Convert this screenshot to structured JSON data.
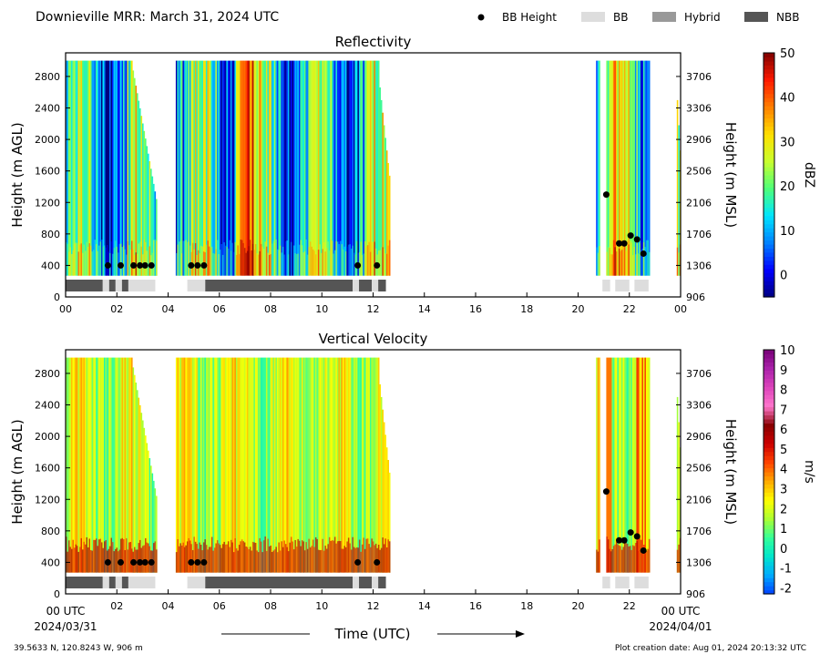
{
  "header": {
    "title": "Downieville MRR:  March 31, 2024 UTC",
    "legend": [
      {
        "label": "BB Height",
        "kind": "dot",
        "color": "#000000"
      },
      {
        "label": "BB",
        "kind": "rect",
        "color": "#dddddd"
      },
      {
        "label": "Hybrid",
        "kind": "rect",
        "color": "#999999"
      },
      {
        "label": "NBB",
        "kind": "rect",
        "color": "#555555"
      }
    ]
  },
  "footer": {
    "location": "39.5633 N, 120.8243 W, 906 m",
    "creation": "Plot creation date: Aug 01, 2024 20:13:32 UTC",
    "xlabel": "Time (UTC)",
    "start_tick": "00 UTC",
    "start_date": "2024/03/31",
    "end_tick": "00 UTC",
    "end_date": "2024/04/01"
  },
  "chart_data": [
    {
      "type": "heatmap",
      "title": "Reflectivity",
      "ylabel": "Height (m AGL)",
      "y2label": "Height (m MSL)",
      "x_ticks": [
        "00",
        "02",
        "04",
        "06",
        "08",
        "10",
        "12",
        "14",
        "16",
        "18",
        "20",
        "22",
        "00"
      ],
      "xlim": [
        0,
        24
      ],
      "ylim": [
        0,
        3100
      ],
      "y_ticks": [
        0,
        400,
        800,
        1200,
        1600,
        2000,
        2400,
        2800
      ],
      "y2_ticks": [
        "906",
        "1306",
        "1706",
        "2106",
        "2506",
        "2906",
        "3306",
        "3706"
      ],
      "colorbar": {
        "label": "dBZ",
        "min": -5,
        "max": 50,
        "ticks": [
          0,
          10,
          20,
          30,
          40,
          50
        ],
        "colors": [
          "#00007f",
          "#0000ff",
          "#0080ff",
          "#00e5ff",
          "#4dff7a",
          "#c8ff2e",
          "#ffe000",
          "#ff8000",
          "#ff1a00",
          "#7f0000"
        ]
      },
      "precip_periods": [
        [
          0.0,
          3.55
        ],
        [
          4.3,
          12.65
        ],
        [
          20.7,
          20.85
        ],
        [
          21.1,
          22.8
        ],
        [
          23.85,
          24.0
        ]
      ],
      "bb_heights": [
        {
          "t": 1.65,
          "h": 400
        },
        {
          "t": 2.15,
          "h": 400
        },
        {
          "t": 2.65,
          "h": 400
        },
        {
          "t": 2.9,
          "h": 400
        },
        {
          "t": 3.1,
          "h": 400
        },
        {
          "t": 3.35,
          "h": 400
        },
        {
          "t": 4.9,
          "h": 400
        },
        {
          "t": 5.15,
          "h": 400
        },
        {
          "t": 5.4,
          "h": 400
        },
        {
          "t": 11.4,
          "h": 400
        },
        {
          "t": 12.15,
          "h": 400
        },
        {
          "t": 21.1,
          "h": 1300
        },
        {
          "t": 21.6,
          "h": 680
        },
        {
          "t": 21.8,
          "h": 680
        },
        {
          "t": 22.05,
          "h": 780
        },
        {
          "t": 22.3,
          "h": 730
        },
        {
          "t": 22.55,
          "h": 550
        }
      ],
      "bb_type_bar": [
        {
          "start": 0.0,
          "end": 1.45,
          "type": "NBB"
        },
        {
          "start": 1.45,
          "end": 1.7,
          "type": "BB"
        },
        {
          "start": 1.7,
          "end": 1.95,
          "type": "NBB"
        },
        {
          "start": 1.95,
          "end": 2.2,
          "type": "BB"
        },
        {
          "start": 2.2,
          "end": 2.45,
          "type": "NBB"
        },
        {
          "start": 2.45,
          "end": 3.5,
          "type": "BB"
        },
        {
          "start": 4.75,
          "end": 5.45,
          "type": "BB"
        },
        {
          "start": 5.45,
          "end": 11.2,
          "type": "NBB"
        },
        {
          "start": 11.2,
          "end": 11.45,
          "type": "BB"
        },
        {
          "start": 11.45,
          "end": 11.95,
          "type": "NBB"
        },
        {
          "start": 11.95,
          "end": 12.2,
          "type": "BB"
        },
        {
          "start": 12.2,
          "end": 12.5,
          "type": "NBB"
        },
        {
          "start": 20.95,
          "end": 21.25,
          "type": "BB"
        },
        {
          "start": 21.45,
          "end": 22.0,
          "type": "BB"
        },
        {
          "start": 22.2,
          "end": 22.75,
          "type": "BB"
        }
      ]
    },
    {
      "type": "heatmap",
      "title": "Vertical Velocity",
      "ylabel": "Height (m AGL)",
      "y2label": "Height (m MSL)",
      "x_ticks": [
        "",
        "02",
        "04",
        "06",
        "08",
        "10",
        "12",
        "14",
        "16",
        "18",
        "20",
        "22",
        ""
      ],
      "xlim": [
        0,
        24
      ],
      "ylim": [
        0,
        3100
      ],
      "y_ticks": [
        0,
        400,
        800,
        1200,
        1600,
        2000,
        2400,
        2800
      ],
      "y2_ticks": [
        "906",
        "1306",
        "1706",
        "2106",
        "2506",
        "2906",
        "3306",
        "3706"
      ],
      "colorbar": {
        "label": "m/s",
        "min": -2.3,
        "max": 10,
        "ticks": [
          -2,
          -1,
          0,
          1,
          2,
          3,
          4,
          5,
          6,
          7,
          8,
          9,
          10
        ],
        "colors": [
          "#0040ff",
          "#00aaff",
          "#00e5cc",
          "#33ff99",
          "#aaff33",
          "#ffff00",
          "#ffaa00",
          "#ff4400",
          "#cc0000",
          "#880000",
          "#ff77cc",
          "#dd44bb",
          "#aa22aa",
          "#770077"
        ]
      },
      "precip_periods": [
        [
          0.0,
          3.55
        ],
        [
          4.3,
          12.65
        ],
        [
          20.7,
          20.85
        ],
        [
          21.1,
          22.8
        ],
        [
          23.85,
          24.0
        ]
      ],
      "bb_heights": [
        {
          "t": 1.65,
          "h": 400
        },
        {
          "t": 2.15,
          "h": 400
        },
        {
          "t": 2.65,
          "h": 400
        },
        {
          "t": 2.9,
          "h": 400
        },
        {
          "t": 3.1,
          "h": 400
        },
        {
          "t": 3.35,
          "h": 400
        },
        {
          "t": 4.9,
          "h": 400
        },
        {
          "t": 5.15,
          "h": 400
        },
        {
          "t": 5.4,
          "h": 400
        },
        {
          "t": 11.4,
          "h": 400
        },
        {
          "t": 12.15,
          "h": 400
        },
        {
          "t": 21.1,
          "h": 1300
        },
        {
          "t": 21.6,
          "h": 680
        },
        {
          "t": 21.8,
          "h": 680
        },
        {
          "t": 22.05,
          "h": 780
        },
        {
          "t": 22.3,
          "h": 730
        },
        {
          "t": 22.55,
          "h": 550
        }
      ],
      "bb_type_bar": [
        {
          "start": 0.0,
          "end": 1.45,
          "type": "NBB"
        },
        {
          "start": 1.45,
          "end": 1.7,
          "type": "BB"
        },
        {
          "start": 1.7,
          "end": 1.95,
          "type": "NBB"
        },
        {
          "start": 1.95,
          "end": 2.2,
          "type": "BB"
        },
        {
          "start": 2.2,
          "end": 2.45,
          "type": "NBB"
        },
        {
          "start": 2.45,
          "end": 3.5,
          "type": "BB"
        },
        {
          "start": 4.75,
          "end": 5.45,
          "type": "BB"
        },
        {
          "start": 5.45,
          "end": 11.2,
          "type": "NBB"
        },
        {
          "start": 11.2,
          "end": 11.45,
          "type": "BB"
        },
        {
          "start": 11.45,
          "end": 11.95,
          "type": "NBB"
        },
        {
          "start": 11.95,
          "end": 12.2,
          "type": "BB"
        },
        {
          "start": 12.2,
          "end": 12.5,
          "type": "NBB"
        },
        {
          "start": 20.95,
          "end": 21.25,
          "type": "BB"
        },
        {
          "start": 21.45,
          "end": 22.0,
          "type": "BB"
        },
        {
          "start": 22.2,
          "end": 22.75,
          "type": "BB"
        }
      ]
    }
  ]
}
